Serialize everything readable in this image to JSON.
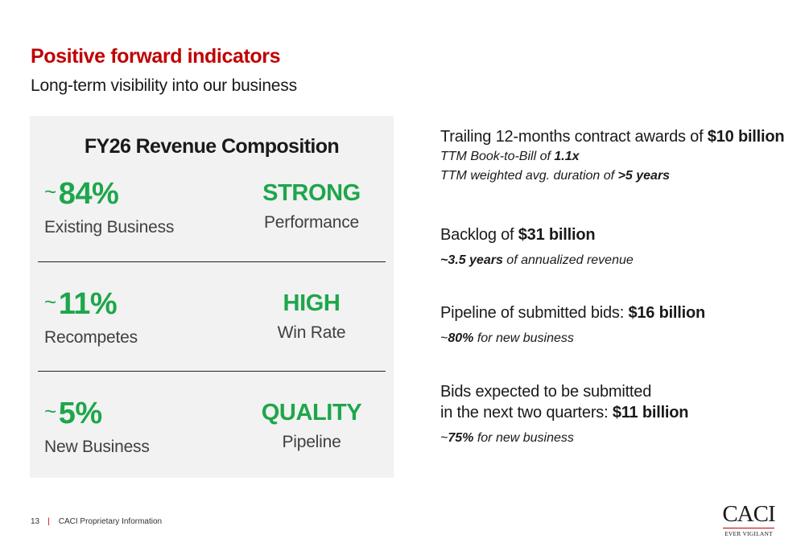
{
  "header": {
    "title": "Positive forward indicators",
    "subtitle": "Long-term visibility into our business"
  },
  "panel": {
    "title": "FY26 Revenue Composition",
    "tilde": "~",
    "rows": [
      {
        "percent": "84%",
        "label": "Existing Business",
        "status": "STRONG",
        "status_sub": "Performance"
      },
      {
        "percent": "11%",
        "label": "Recompetes",
        "status": "HIGH",
        "status_sub": "Win Rate"
      },
      {
        "percent": "5%",
        "label": "New Business",
        "status": "QUALITY",
        "status_sub": "Pipeline"
      }
    ]
  },
  "metrics": [
    {
      "main_pre": "Trailing 12-months contract awards of ",
      "main_bold": "$10 billion",
      "subs": [
        {
          "pre": "TTM Book-to-Bill of ",
          "bold": "1.1x",
          "post": ""
        },
        {
          "pre": "TTM weighted avg. duration of ",
          "bold": ">5 years",
          "post": ""
        }
      ]
    },
    {
      "main_pre": "Backlog of ",
      "main_bold": "$31 billion",
      "subs": [
        {
          "pre": "",
          "bold": "~3.5 years",
          "post": " of annualized revenue"
        }
      ]
    },
    {
      "main_pre": "Pipeline of submitted bids: ",
      "main_bold": "$16 billion",
      "subs": [
        {
          "pre": "~",
          "bold": "80%",
          "post": " for new business"
        }
      ]
    },
    {
      "main_line1": "Bids expected to be submitted",
      "main_pre": "in the next two quarters: ",
      "main_bold": "$11 billion",
      "subs": [
        {
          "pre": "~",
          "bold": "75%",
          "post": " for new business"
        }
      ]
    }
  ],
  "footer": {
    "page_number": "13",
    "separator": "|",
    "text": "CACI Proprietary Information"
  },
  "logo": {
    "name": "CACI",
    "tagline": "EVER VIGILANT"
  },
  "colors": {
    "title_red": "#c00000",
    "accent_green": "#1ea64b",
    "panel_gray": "#f2f2f2"
  }
}
